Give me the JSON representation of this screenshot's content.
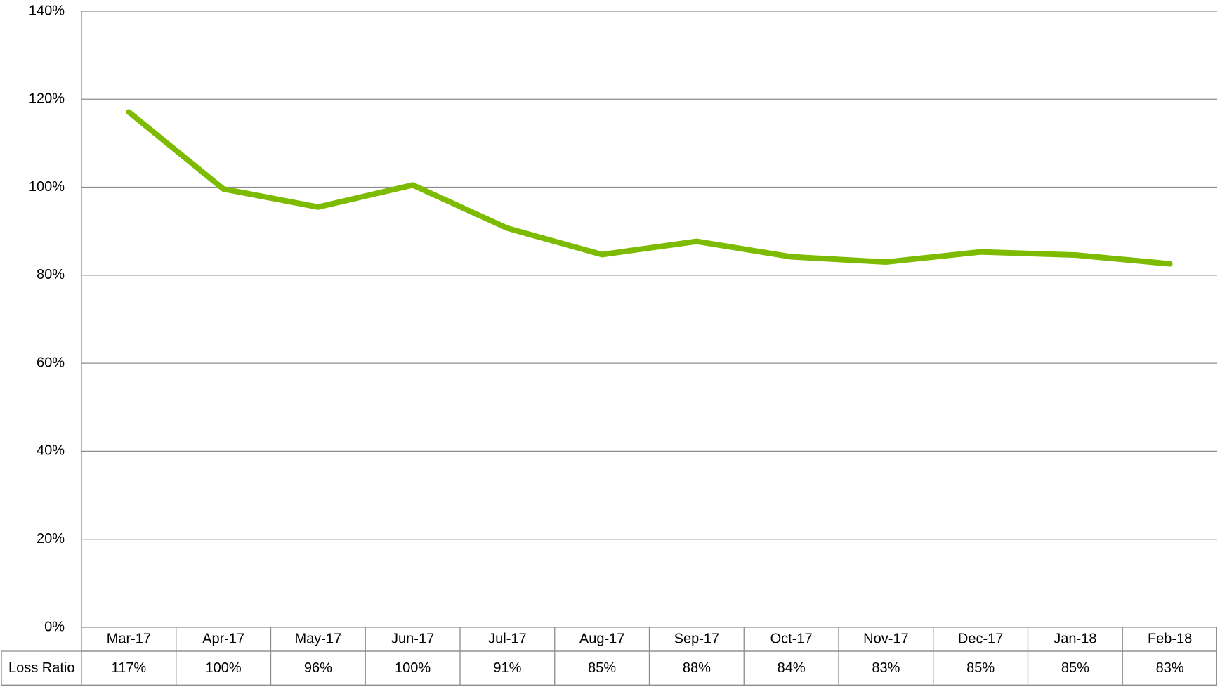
{
  "chart_data": {
    "type": "line",
    "categories": [
      "Mar-17",
      "Apr-17",
      "May-17",
      "Jun-17",
      "Jul-17",
      "Aug-17",
      "Sep-17",
      "Oct-17",
      "Nov-17",
      "Dec-17",
      "Jan-18",
      "Feb-18"
    ],
    "series": [
      {
        "name": "Loss Ratio",
        "color": "#7cbb00",
        "values": [
          117.1,
          99.6,
          95.5,
          100.5,
          90.7,
          84.7,
          87.7,
          84.2,
          83.0,
          85.3,
          84.6,
          82.6
        ],
        "value_labels": [
          "117%",
          "100%",
          "96%",
          "100%",
          "91%",
          "85%",
          "88%",
          "84%",
          "83%",
          "85%",
          "85%",
          "83%"
        ]
      }
    ],
    "ylim": [
      0,
      140
    ],
    "yticks": [
      {
        "value": 0,
        "label": "0%"
      },
      {
        "value": 20,
        "label": "20%"
      },
      {
        "value": 40,
        "label": "40%"
      },
      {
        "value": 60,
        "label": "60%"
      },
      {
        "value": 80,
        "label": "80%"
      },
      {
        "value": 100,
        "label": "100%"
      },
      {
        "value": 120,
        "label": "120%"
      },
      {
        "value": 140,
        "label": "140%"
      }
    ],
    "grid": true,
    "data_table": true
  }
}
